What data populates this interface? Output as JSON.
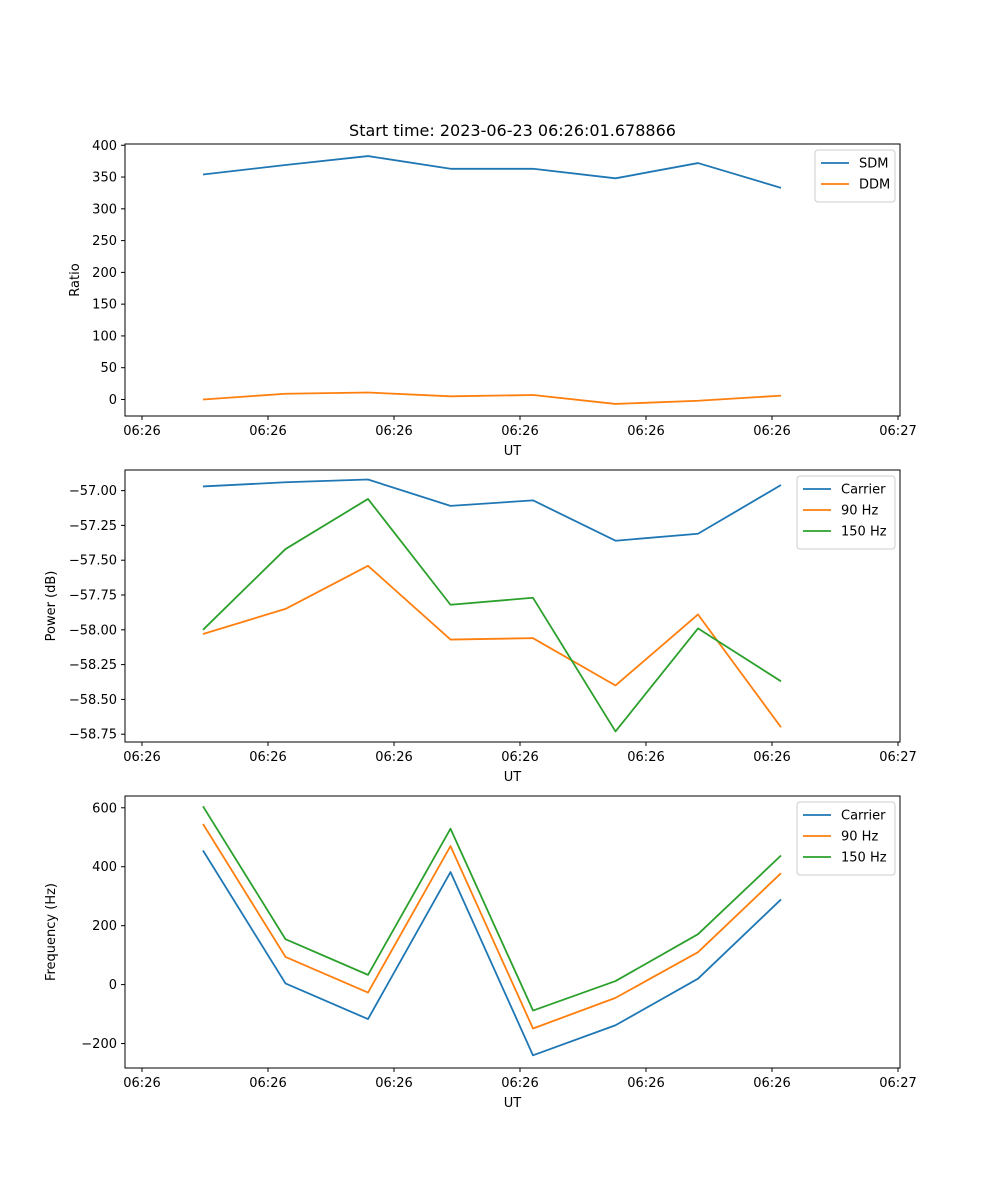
{
  "figure_title": "Start time: 2023-06-23 06:26:01.678866",
  "chart_data": [
    {
      "type": "line",
      "xlabel": "UT",
      "ylabel": "Ratio",
      "x_tick_labels": [
        "06:26",
        "06:26",
        "06:26",
        "06:26",
        "06:26",
        "06:26",
        "06:27"
      ],
      "y_ticks": [
        0,
        50,
        100,
        150,
        200,
        250,
        300,
        350,
        400
      ],
      "ylim": [
        -26,
        402
      ],
      "legend_position": "top-right",
      "series": [
        {
          "name": "SDM",
          "color": "#1f77b4",
          "values": [
            354,
            369,
            383,
            363,
            363,
            348,
            372,
            333
          ]
        },
        {
          "name": "DDM",
          "color": "#ff7f0e",
          "values": [
            0,
            9,
            11,
            5,
            7,
            -7,
            -2,
            6
          ]
        }
      ]
    },
    {
      "type": "line",
      "xlabel": "UT",
      "ylabel": "Power (dB)",
      "x_tick_labels": [
        "06:26",
        "06:26",
        "06:26",
        "06:26",
        "06:26",
        "06:26",
        "06:27"
      ],
      "y_ticks": [
        -58.75,
        -58.5,
        -58.25,
        -58.0,
        -57.75,
        -57.5,
        -57.25,
        -57.0
      ],
      "y_tick_labels": [
        "−58.75",
        "−58.50",
        "−58.25",
        "−58.00",
        "−57.75",
        "−57.50",
        "−57.25",
        "−57.00"
      ],
      "ylim": [
        -58.806,
        -56.852
      ],
      "legend_position": "top-right",
      "series": [
        {
          "name": "Carrier",
          "color": "#1f77b4",
          "values": [
            -56.97,
            -56.94,
            -56.92,
            -57.11,
            -57.07,
            -57.36,
            -57.31,
            -56.96
          ]
        },
        {
          "name": "90 Hz",
          "color": "#ff7f0e",
          "values": [
            -58.03,
            -57.85,
            -57.54,
            -58.07,
            -58.06,
            -58.4,
            -57.89,
            -58.7
          ]
        },
        {
          "name": "150 Hz",
          "color": "#2ca02c",
          "values": [
            -58.0,
            -57.42,
            -57.06,
            -57.82,
            -57.77,
            -58.73,
            -57.99,
            -58.37
          ]
        }
      ]
    },
    {
      "type": "line",
      "xlabel": "UT",
      "ylabel": "Frequency (Hz)",
      "x_tick_labels": [
        "06:26",
        "06:26",
        "06:26",
        "06:26",
        "06:26",
        "06:26",
        "06:27"
      ],
      "y_ticks": [
        -200,
        0,
        200,
        400,
        600
      ],
      "y_tick_labels": [
        "−200",
        "0",
        "200",
        "400",
        "600"
      ],
      "ylim": [
        -283,
        640
      ],
      "legend_position": "top-right",
      "series": [
        {
          "name": "Carrier",
          "color": "#1f77b4",
          "values": [
            455,
            4,
            -117,
            382,
            -240,
            -138,
            20,
            289
          ]
        },
        {
          "name": "90 Hz",
          "color": "#ff7f0e",
          "values": [
            545,
            94,
            -27,
            470,
            -149,
            -45,
            110,
            378
          ]
        },
        {
          "name": "150 Hz",
          "color": "#2ca02c",
          "values": [
            605,
            154,
            33,
            529,
            -88,
            12,
            171,
            438
          ]
        }
      ]
    }
  ]
}
